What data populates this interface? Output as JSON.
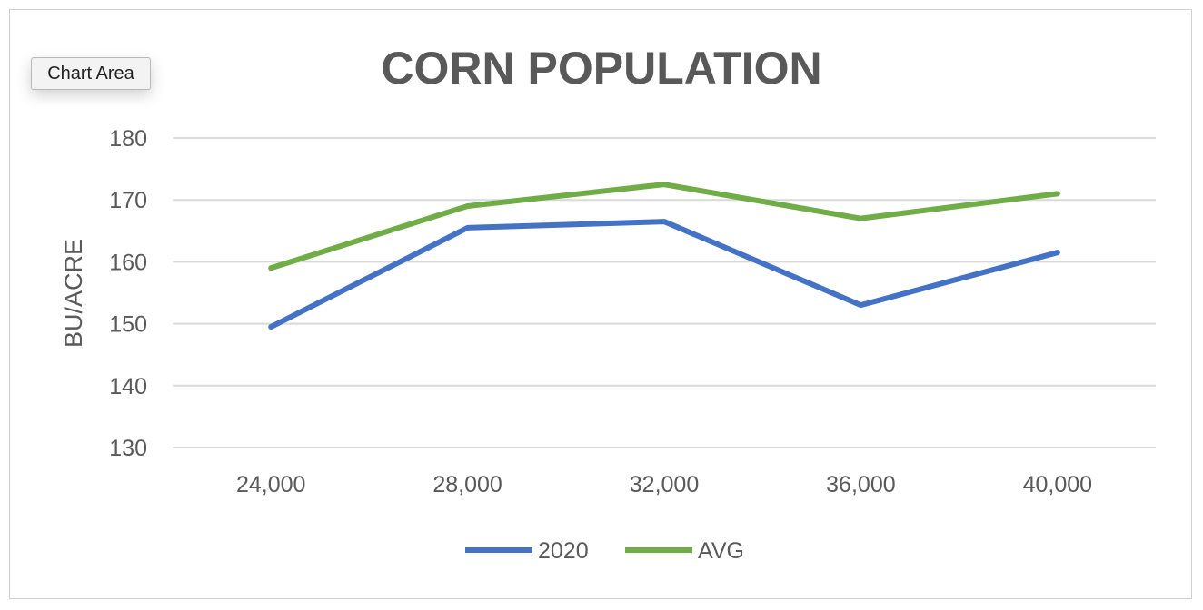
{
  "tooltip": {
    "label": "Chart Area"
  },
  "chart_data": {
    "type": "line",
    "title": "CORN POPULATION",
    "xlabel": "",
    "ylabel": "BU/ACRE",
    "categories": [
      "24,000",
      "28,000",
      "32,000",
      "36,000",
      "40,000"
    ],
    "ylim": [
      130,
      180
    ],
    "yticks": [
      130,
      140,
      150,
      160,
      170,
      180
    ],
    "grid": true,
    "legend_position": "bottom",
    "series": [
      {
        "name": "2020",
        "color": "#4472C4",
        "values": [
          149.5,
          165.5,
          166.5,
          153,
          161.5
        ]
      },
      {
        "name": "AVG",
        "color": "#70AD47",
        "values": [
          159,
          169,
          172.5,
          167,
          171
        ]
      }
    ]
  }
}
